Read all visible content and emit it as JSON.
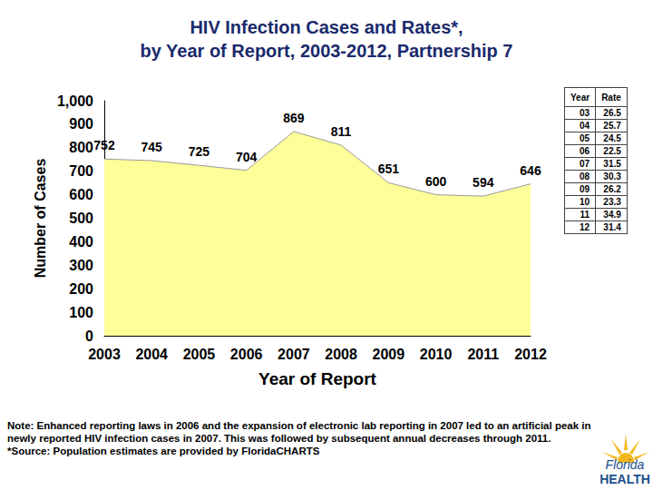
{
  "chart_data": {
    "type": "area",
    "title": "HIV Infection Cases and Rates*,\nby Year of Report, 2003-2012, Partnership 7",
    "x_label": "Year of Report",
    "y_label": "Number of Cases",
    "categories": [
      "2003",
      "2004",
      "2005",
      "2006",
      "2007",
      "2008",
      "2009",
      "2010",
      "2011",
      "2012"
    ],
    "values": [
      752,
      745,
      725,
      704,
      869,
      811,
      651,
      600,
      594,
      646
    ],
    "color": "#ffff99",
    "ylim": [
      0,
      1000
    ],
    "yticks": [
      0,
      100,
      200,
      300,
      400,
      500,
      600,
      700,
      800,
      900,
      1000
    ],
    "grid": false,
    "data_labels": true
  },
  "rate_table": {
    "header": [
      "Year",
      "Rate"
    ],
    "rows": [
      [
        "03",
        "26.5"
      ],
      [
        "04",
        "25.7"
      ],
      [
        "05",
        "24.5"
      ],
      [
        "06",
        "22.5"
      ],
      [
        "07",
        "31.5"
      ],
      [
        "08",
        "30.3"
      ],
      [
        "09",
        "26.2"
      ],
      [
        "10",
        "23.3"
      ],
      [
        "11",
        "34.9"
      ],
      [
        "12",
        "31.4"
      ]
    ]
  },
  "note": [
    "Note:  Enhanced reporting laws in 2006 and the expansion of electronic lab reporting in 2007 led to an artificial peak in newly reported HIV infection cases in 2007.  This was followed by subsequent annual decreases through 2011.",
    "*Source: Population estimates are provided by FloridaCHARTS"
  ],
  "logo": [
    "Florida",
    "HEALTH"
  ]
}
